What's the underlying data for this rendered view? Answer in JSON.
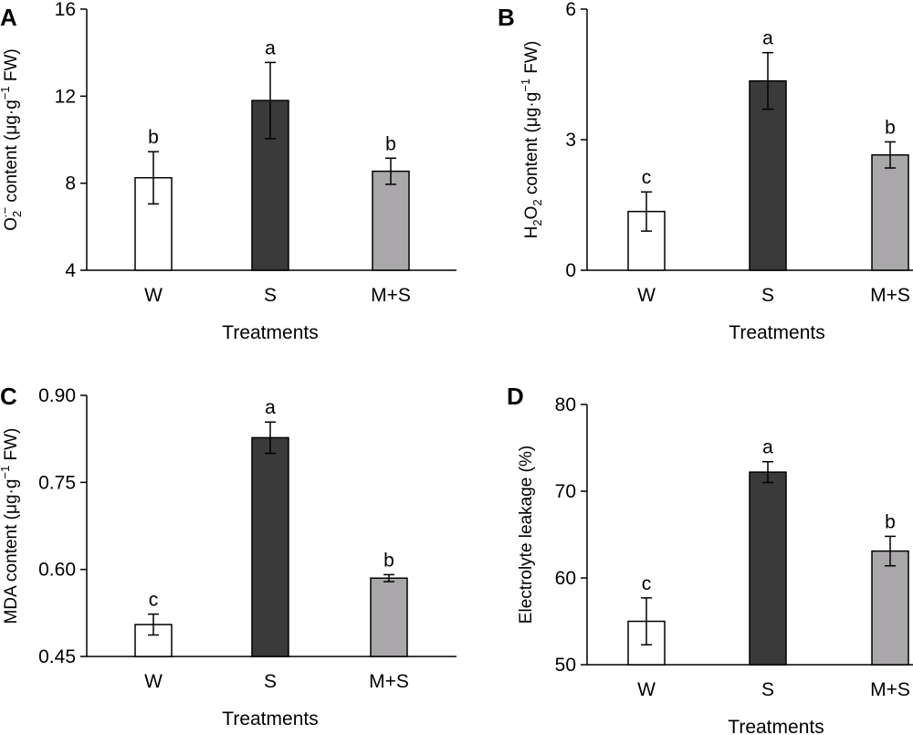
{
  "chart_data": [
    {
      "panel": "A",
      "type": "bar",
      "categories": [
        "W",
        "S",
        "M+S"
      ],
      "values": [
        8.25,
        11.8,
        8.55
      ],
      "errors": [
        1.2,
        1.75,
        0.6
      ],
      "significance": [
        "b",
        "a",
        "b"
      ],
      "colors": [
        "#ffffff",
        "#3a3a3a",
        "#a9a7a9"
      ],
      "xlabel": "Treatments",
      "ylabel": {
        "prefix": "O",
        "sub": "2",
        "sup": "·−",
        "rest": " content (μg·g",
        "exp": "−1",
        "tail": " FW)"
      },
      "ylim": [
        4,
        16
      ],
      "yticks": [
        "4",
        "8",
        "12",
        "16"
      ]
    },
    {
      "panel": "B",
      "type": "bar",
      "categories": [
        "W",
        "S",
        "M+S"
      ],
      "values": [
        1.35,
        4.35,
        2.65
      ],
      "errors": [
        0.45,
        0.65,
        0.3
      ],
      "significance": [
        "c",
        "a",
        "b"
      ],
      "colors": [
        "#ffffff",
        "#3a3a3a",
        "#a9a7a9"
      ],
      "xlabel": "Treatments",
      "ylabel": {
        "prefix": "H",
        "sub": "2",
        "mid": "O",
        "sub2": "2",
        "rest": " content (μg·g",
        "exp": "−1",
        "tail": " FW)"
      },
      "ylim": [
        0,
        6
      ],
      "yticks": [
        "0",
        "3",
        "6"
      ]
    },
    {
      "panel": "C",
      "type": "bar",
      "categories": [
        "W",
        "S",
        "M+S"
      ],
      "values": [
        0.505,
        0.827,
        0.585
      ],
      "errors": [
        0.018,
        0.027,
        0.006
      ],
      "significance": [
        "c",
        "a",
        "b"
      ],
      "colors": [
        "#ffffff",
        "#3a3a3a",
        "#a9a7a9"
      ],
      "xlabel": "Treatments",
      "ylabel": {
        "prefix": "MDA content (μg·g",
        "exp": "−1",
        "tail": " FW)"
      },
      "ylim": [
        0.45,
        0.9
      ],
      "yticks": [
        "0.45",
        "0.60",
        "0.75",
        "0.90"
      ]
    },
    {
      "panel": "D",
      "type": "bar",
      "categories": [
        "W",
        "S",
        "M+S"
      ],
      "values": [
        55,
        72.2,
        63.1
      ],
      "errors": [
        2.7,
        1.2,
        1.7
      ],
      "significance": [
        "c",
        "a",
        "b"
      ],
      "colors": [
        "#ffffff",
        "#3a3a3a",
        "#a9a7a9"
      ],
      "xlabel": "Treatments",
      "ylabel": {
        "prefix": "Electrolyte leakage (%)"
      },
      "ylim": [
        50,
        80
      ],
      "yticks": [
        "50",
        "60",
        "70",
        "80"
      ]
    }
  ]
}
